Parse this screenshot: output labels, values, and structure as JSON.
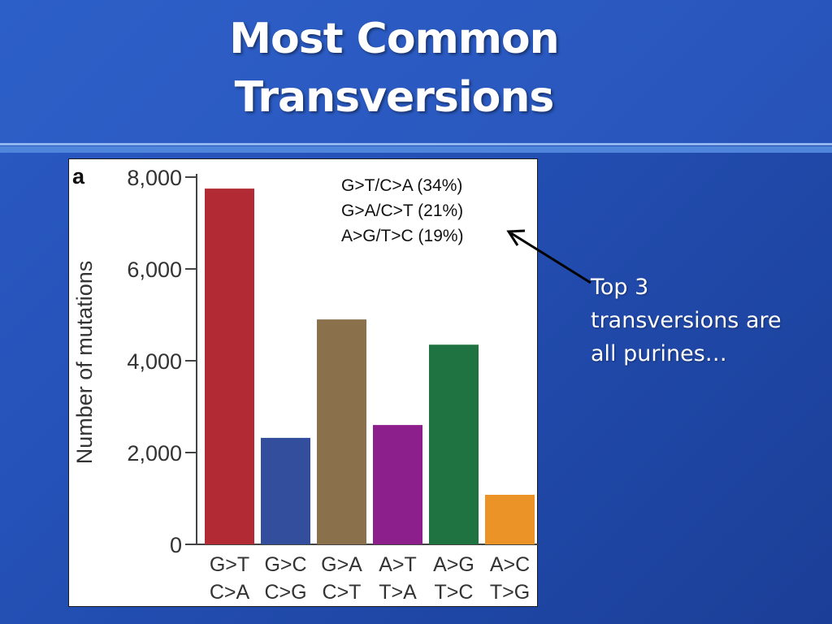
{
  "slide": {
    "title_line1": "Most Common",
    "title_line2": "Transversions",
    "annotation_line1": "Top 3",
    "annotation_line2": "transversions are",
    "annotation_line3": "all purines…"
  },
  "chart_data": {
    "type": "bar",
    "panel_label": "a",
    "ylabel": "Number of mutations",
    "ylim": [
      0,
      8000
    ],
    "yticks": [
      0,
      2000,
      4000,
      6000,
      8000
    ],
    "ytick_labels": [
      "0",
      "2,000",
      "4,000",
      "6,000",
      "8,000"
    ],
    "categories": [
      {
        "line1": "G>T",
        "line2": "C>A"
      },
      {
        "line1": "G>C",
        "line2": "C>G"
      },
      {
        "line1": "G>A",
        "line2": "C>T"
      },
      {
        "line1": "A>T",
        "line2": "T>A"
      },
      {
        "line1": "A>G",
        "line2": "T>C"
      },
      {
        "line1": "A>C",
        "line2": "T>G"
      }
    ],
    "values": [
      7750,
      2320,
      4900,
      2600,
      4350,
      1080
    ],
    "colors": [
      "#b22a33",
      "#344e9e",
      "#8a714b",
      "#8d1f8c",
      "#1e7340",
      "#ec9327"
    ],
    "legend": [
      "G>T/C>A (34%)",
      "G>A/C>T (21%)",
      "A>G/T>C (19%)"
    ]
  }
}
